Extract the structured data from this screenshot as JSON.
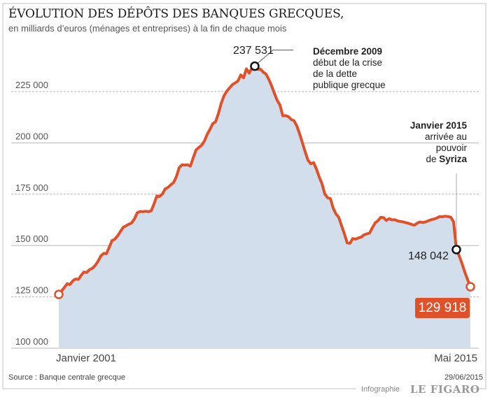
{
  "colors": {
    "line": "#e0512a",
    "fill": "#d2deec",
    "grid": "#b5b5b5",
    "marker_dark": "#111111",
    "badge": "#e0512a"
  },
  "chart_data": {
    "type": "area",
    "title": "ÉVOLUTION DES DÉPÔTS DES BANQUES GRECQUES,",
    "subtitle": "en milliards d’euros (ménages et entreprises) à la fin de chaque mois",
    "xlabel_start": "Janvier 2001",
    "xlabel_end": "Mai 2015",
    "ylim": [
      100000,
      237531
    ],
    "yticks": [
      {
        "value": 225000,
        "label": "225 000",
        "style": "dashed"
      },
      {
        "value": 200000,
        "label": "200 000",
        "style": "solid"
      },
      {
        "value": 175000,
        "label": "175 000",
        "style": "dashed"
      },
      {
        "value": 150000,
        "label": "150 000",
        "style": "solid"
      },
      {
        "value": 125000,
        "label": "125 000",
        "style": "dashed"
      },
      {
        "value": 100000,
        "label": "100 000",
        "style": "solid"
      }
    ],
    "series": [
      {
        "name": "Dépôts",
        "values": [
          126200,
          127900,
          129600,
          131400,
          131000,
          132800,
          133700,
          133500,
          135500,
          137100,
          136900,
          138300,
          138900,
          140300,
          142300,
          144900,
          146200,
          146000,
          149100,
          152400,
          153100,
          154700,
          156800,
          158900,
          159600,
          160400,
          161000,
          162900,
          165900,
          166600,
          166500,
          166700,
          166500,
          166900,
          170200,
          174100,
          173900,
          175100,
          177600,
          178300,
          179600,
          180700,
          183600,
          187900,
          189300,
          189200,
          189300,
          188700,
          192700,
          196500,
          197800,
          198800,
          200900,
          204200,
          206600,
          209400,
          210300,
          214300,
          219200,
          223000,
          225200,
          226800,
          228400,
          229200,
          230200,
          233100,
          231700,
          236100,
          234000,
          236500,
          237400,
          235800,
          236000,
          234500,
          233500,
          231000,
          227800,
          224100,
          220700,
          218400,
          213200,
          213300,
          212800,
          211400,
          210800,
          208300,
          204400,
          200100,
          195600,
          191600,
          189800,
          190400,
          187300,
          183400,
          180100,
          175100,
          173300,
          172900,
          168200,
          165400,
          163700,
          159600,
          155700,
          151300,
          151100,
          153400,
          153100,
          153700,
          154100,
          155200,
          155700,
          156100,
          158700,
          161100,
          162100,
          163800,
          163600,
          162200,
          163100,
          162500,
          162600,
          162000,
          161700,
          161500,
          161100,
          160800,
          160300,
          159900,
          160900,
          161500,
          161200,
          161500,
          162100,
          162600,
          162900,
          163400,
          164100,
          164000,
          164300,
          164100,
          163800,
          161500,
          148042,
          145000,
          141200,
          137100,
          133400,
          129918
        ]
      }
    ],
    "annotations": [
      {
        "value_label": "237 531",
        "title": "Décembre 2009",
        "lines": [
          "début de la crise",
          "de la dette",
          "publique grecque"
        ]
      },
      {
        "value_label": "148 042",
        "title": "Janvier 2015",
        "lines": [
          "arrivée au",
          "pouvoir",
          "de "
        ],
        "emphasis": "Syriza"
      },
      {
        "value_label": "129 918"
      }
    ]
  },
  "footer": {
    "source": "Source : Banque centrale grecque",
    "date": "29/06/2015",
    "credit": "Infographie",
    "brand": "LE FIGARO"
  }
}
